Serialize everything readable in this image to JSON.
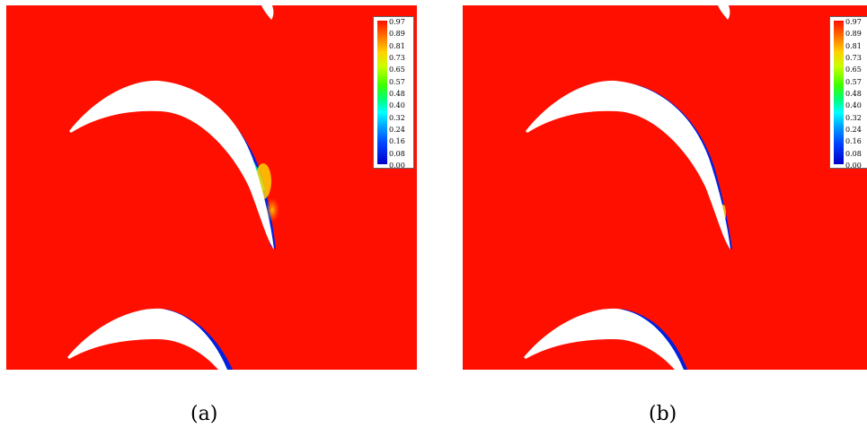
{
  "panels": [
    {
      "id": "a",
      "caption": "(a)",
      "legend_ticks": [
        "0.97",
        "0.89",
        "0.81",
        "0.73",
        "0.65",
        "0.57",
        "0.48",
        "0.40",
        "0.32",
        "0.24",
        "0.16",
        "0.08",
        "0.00"
      ],
      "flow_detail": "strong"
    },
    {
      "id": "b",
      "caption": "(b)",
      "legend_ticks": [
        "0.97",
        "0.89",
        "0.81",
        "0.73",
        "0.65",
        "0.57",
        "0.48",
        "0.40",
        "0.32",
        "0.24",
        "0.16",
        "0.08",
        "0.00"
      ],
      "flow_detail": "thin"
    }
  ],
  "colors": {
    "background_field": "#ff0f00",
    "blade": "#ffffff",
    "low_value": "#0000c8",
    "mid_value": "#00ff40",
    "high_value": "#ffd200"
  }
}
